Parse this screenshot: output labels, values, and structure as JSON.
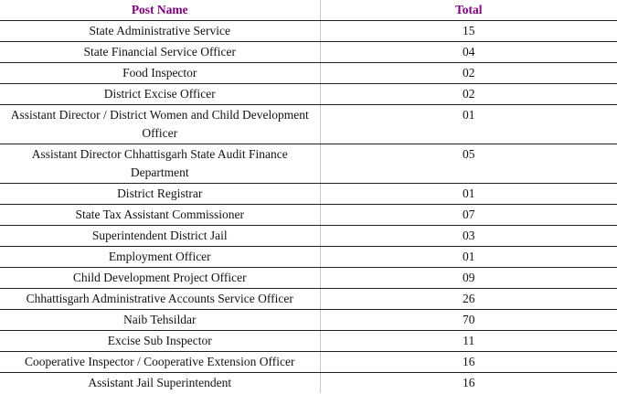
{
  "colors": {
    "header_text": "#800080",
    "body_text": "#121212",
    "row_rule": "#23211a",
    "column_divider": "#c9c9c9",
    "background": "#ffffff"
  },
  "table": {
    "headers": {
      "post": "Post Name",
      "total": "Total"
    },
    "rows": [
      {
        "post": "State Administrative Service",
        "total": "15"
      },
      {
        "post": "State Financial Service Officer",
        "total": "04"
      },
      {
        "post": "Food Inspector",
        "total": "02"
      },
      {
        "post": "District Excise Officer",
        "total": "02"
      },
      {
        "post": "Assistant Director / District Women and Child Development Officer",
        "total": "01"
      },
      {
        "post": "Assistant Director Chhattisgarh State Audit Finance Department",
        "total": "05"
      },
      {
        "post": "District Registrar",
        "total": "01"
      },
      {
        "post": "State Tax Assistant Commissioner",
        "total": "07"
      },
      {
        "post": "Superintendent District Jail",
        "total": "03"
      },
      {
        "post": "Employment Officer",
        "total": "01"
      },
      {
        "post": "Child Development Project Officer",
        "total": "09"
      },
      {
        "post": "Chhattisgarh Administrative Accounts Service Officer",
        "total": "26"
      },
      {
        "post": "Naib Tehsildar",
        "total": "70"
      },
      {
        "post": "Excise Sub Inspector",
        "total": "11"
      },
      {
        "post": "Cooperative Inspector / Cooperative Extension Officer",
        "total": "16"
      },
      {
        "post": "Assistant Jail Superintendent",
        "total": "16"
      }
    ]
  }
}
